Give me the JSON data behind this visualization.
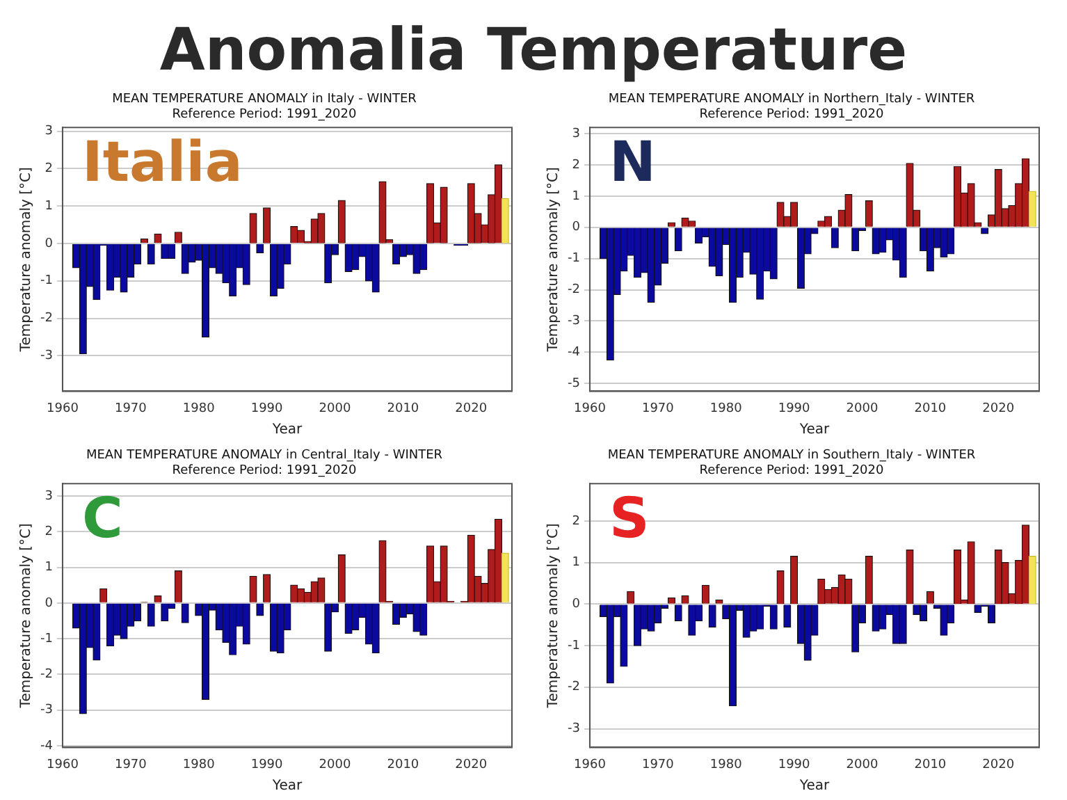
{
  "chart_data": [
    {
      "type": "other",
      "title": "Anomalia Temperature"
    },
    {
      "type": "bar",
      "title": "MEAN TEMPERATURE ANOMALY in Italy - WINTER",
      "subtitle": "Reference Period: 1991_2020",
      "xlabel": "Year",
      "ylabel": "Temperature anomaly [°C]",
      "annotations": [
        "Italia"
      ],
      "x": [
        1962,
        1963,
        1964,
        1965,
        1966,
        1967,
        1968,
        1969,
        1970,
        1971,
        1972,
        1973,
        1974,
        1975,
        1976,
        1977,
        1978,
        1979,
        1980,
        1981,
        1982,
        1983,
        1984,
        1985,
        1986,
        1987,
        1988,
        1989,
        1990,
        1991,
        1992,
        1993,
        1994,
        1995,
        1996,
        1997,
        1998,
        1999,
        2000,
        2001,
        2002,
        2003,
        2004,
        2005,
        2006,
        2007,
        2008,
        2009,
        2010,
        2011,
        2012,
        2013,
        2014,
        2015,
        2016,
        2017,
        2018,
        2019,
        2020,
        2021,
        2022,
        2023,
        2024,
        2025
      ],
      "values": [
        -0.65,
        -2.95,
        -1.15,
        -1.5,
        -0.05,
        -1.25,
        -0.9,
        -1.3,
        -0.9,
        -0.55,
        0.12,
        -0.55,
        0.25,
        -0.4,
        -0.4,
        0.3,
        -0.8,
        -0.5,
        -0.45,
        -2.5,
        -0.65,
        -0.8,
        -1.05,
        -1.4,
        -0.65,
        -1.1,
        0.8,
        -0.25,
        0.95,
        -1.4,
        -1.2,
        -0.55,
        0.45,
        0.35,
        0.05,
        0.65,
        0.8,
        -1.05,
        -0.3,
        1.15,
        -0.75,
        -0.7,
        -0.35,
        -1.0,
        -1.3,
        1.65,
        0.1,
        -0.55,
        -0.35,
        -0.3,
        -0.8,
        -0.7,
        1.6,
        0.55,
        1.5,
        0,
        -0.05,
        -0.05,
        1.6,
        0.8,
        0.5,
        1.3,
        2.1,
        1.2
      ],
      "colors": [
        "#0a0a9e",
        "#0a0a9e",
        "#0a0a9e",
        "#0a0a9e",
        "#0a0a9e",
        "#0a0a9e",
        "#0a0a9e",
        "#0a0a9e",
        "#0a0a9e",
        "#0a0a9e",
        "#b01c1c",
        "#0a0a9e",
        "#b01c1c",
        "#0a0a9e",
        "#0a0a9e",
        "#b01c1c",
        "#0a0a9e",
        "#0a0a9e",
        "#0a0a9e",
        "#0a0a9e",
        "#0a0a9e",
        "#0a0a9e",
        "#0a0a9e",
        "#0a0a9e",
        "#0a0a9e",
        "#0a0a9e",
        "#b01c1c",
        "#0a0a9e",
        "#b01c1c",
        "#0a0a9e",
        "#0a0a9e",
        "#0a0a9e",
        "#b01c1c",
        "#b01c1c",
        "#b01c1c",
        "#b01c1c",
        "#b01c1c",
        "#0a0a9e",
        "#0a0a9e",
        "#b01c1c",
        "#0a0a9e",
        "#0a0a9e",
        "#0a0a9e",
        "#0a0a9e",
        "#0a0a9e",
        "#b01c1c",
        "#b01c1c",
        "#0a0a9e",
        "#0a0a9e",
        "#0a0a9e",
        "#0a0a9e",
        "#0a0a9e",
        "#b01c1c",
        "#b01c1c",
        "#b01c1c",
        "#b01c1c",
        "#0a0a9e",
        "#0a0a9e",
        "#b01c1c",
        "#b01c1c",
        "#b01c1c",
        "#b01c1c",
        "#b01c1c",
        "#f2e35a"
      ],
      "xlim": [
        1960,
        2026
      ],
      "xticks": [
        1960,
        1970,
        1980,
        1990,
        2000,
        2010,
        2020
      ],
      "ylim": [
        -3.95,
        3.1
      ],
      "yticks": [
        -3,
        -2,
        -1,
        0,
        1,
        2,
        3
      ],
      "grid": "y",
      "legend": false
    },
    {
      "type": "bar",
      "title": "MEAN TEMPERATURE ANOMALY in Northern_Italy - WINTER",
      "subtitle": "Reference Period: 1991_2020",
      "xlabel": "Year",
      "ylabel": "Temperature anomaly [°C]",
      "annotations": [
        "N"
      ],
      "x": [
        1962,
        1963,
        1964,
        1965,
        1966,
        1967,
        1968,
        1969,
        1970,
        1971,
        1972,
        1973,
        1974,
        1975,
        1976,
        1977,
        1978,
        1979,
        1980,
        1981,
        1982,
        1983,
        1984,
        1985,
        1986,
        1987,
        1988,
        1989,
        1990,
        1991,
        1992,
        1993,
        1994,
        1995,
        1996,
        1997,
        1998,
        1999,
        2000,
        2001,
        2002,
        2003,
        2004,
        2005,
        2006,
        2007,
        2008,
        2009,
        2010,
        2011,
        2012,
        2013,
        2014,
        2015,
        2016,
        2017,
        2018,
        2019,
        2020,
        2021,
        2022,
        2023,
        2024,
        2025
      ],
      "values": [
        -1.0,
        -4.25,
        -2.15,
        -1.4,
        -0.9,
        -1.6,
        -1.45,
        -2.4,
        -1.85,
        -1.15,
        0.15,
        -0.75,
        0.3,
        0.2,
        -0.5,
        -0.3,
        -1.25,
        -1.55,
        -0.55,
        -2.4,
        -1.6,
        -0.8,
        -1.5,
        -2.3,
        -1.4,
        -1.65,
        0.8,
        0.35,
        0.8,
        -1.95,
        -0.85,
        -0.2,
        0.2,
        0.35,
        -0.65,
        0.55,
        1.05,
        -0.75,
        -0.1,
        0.85,
        -0.85,
        -0.8,
        -0.4,
        -1.05,
        -1.6,
        2.05,
        0.55,
        -0.75,
        -1.4,
        -0.65,
        -0.95,
        -0.85,
        1.95,
        1.1,
        1.4,
        0.15,
        -0.2,
        0.4,
        1.85,
        0.6,
        0.7,
        1.4,
        2.2,
        1.15
      ],
      "colors": [
        "#0a0a9e",
        "#0a0a9e",
        "#0a0a9e",
        "#0a0a9e",
        "#0a0a9e",
        "#0a0a9e",
        "#0a0a9e",
        "#0a0a9e",
        "#0a0a9e",
        "#0a0a9e",
        "#b01c1c",
        "#0a0a9e",
        "#b01c1c",
        "#b01c1c",
        "#0a0a9e",
        "#0a0a9e",
        "#0a0a9e",
        "#0a0a9e",
        "#0a0a9e",
        "#0a0a9e",
        "#0a0a9e",
        "#0a0a9e",
        "#0a0a9e",
        "#0a0a9e",
        "#0a0a9e",
        "#0a0a9e",
        "#b01c1c",
        "#b01c1c",
        "#b01c1c",
        "#0a0a9e",
        "#0a0a9e",
        "#0a0a9e",
        "#b01c1c",
        "#b01c1c",
        "#0a0a9e",
        "#b01c1c",
        "#b01c1c",
        "#0a0a9e",
        "#0a0a9e",
        "#b01c1c",
        "#0a0a9e",
        "#0a0a9e",
        "#0a0a9e",
        "#0a0a9e",
        "#0a0a9e",
        "#b01c1c",
        "#b01c1c",
        "#0a0a9e",
        "#0a0a9e",
        "#0a0a9e",
        "#0a0a9e",
        "#0a0a9e",
        "#b01c1c",
        "#b01c1c",
        "#b01c1c",
        "#b01c1c",
        "#0a0a9e",
        "#b01c1c",
        "#b01c1c",
        "#b01c1c",
        "#b01c1c",
        "#b01c1c",
        "#b01c1c",
        "#f2e35a"
      ],
      "xlim": [
        1960,
        2026
      ],
      "xticks": [
        1960,
        1970,
        1980,
        1990,
        2000,
        2010,
        2020
      ],
      "ylim": [
        -5.25,
        3.2
      ],
      "yticks": [
        -5,
        -4,
        -3,
        -2,
        -1,
        0,
        1,
        2,
        3
      ],
      "grid": "y",
      "legend": false
    },
    {
      "type": "bar",
      "title": "MEAN TEMPERATURE ANOMALY in Central_Italy - WINTER",
      "subtitle": "Reference Period: 1991_2020",
      "xlabel": "Year",
      "ylabel": "Temperature anomaly [°C]",
      "annotations": [
        "C"
      ],
      "x": [
        1962,
        1963,
        1964,
        1965,
        1966,
        1967,
        1968,
        1969,
        1970,
        1971,
        1972,
        1973,
        1974,
        1975,
        1976,
        1977,
        1978,
        1979,
        1980,
        1981,
        1982,
        1983,
        1984,
        1985,
        1986,
        1987,
        1988,
        1989,
        1990,
        1991,
        1992,
        1993,
        1994,
        1995,
        1996,
        1997,
        1998,
        1999,
        2000,
        2001,
        2002,
        2003,
        2004,
        2005,
        2006,
        2007,
        2008,
        2009,
        2010,
        2011,
        2012,
        2013,
        2014,
        2015,
        2016,
        2017,
        2018,
        2019,
        2020,
        2021,
        2022,
        2023,
        2024,
        2025
      ],
      "values": [
        -0.7,
        -3.1,
        -1.25,
        -1.6,
        0.4,
        -1.2,
        -0.9,
        -1.0,
        -0.65,
        -0.5,
        0.02,
        -0.65,
        0.2,
        -0.5,
        -0.15,
        0.9,
        -0.55,
        0,
        -0.35,
        -2.7,
        -0.2,
        -0.75,
        -1.1,
        -1.45,
        -0.65,
        -1.15,
        0.75,
        -0.35,
        0.8,
        -1.35,
        -1.4,
        -0.75,
        0.5,
        0.4,
        0.3,
        0.6,
        0.7,
        -1.35,
        -0.25,
        1.35,
        -0.85,
        -0.75,
        -0.4,
        -1.15,
        -1.4,
        1.75,
        0.05,
        -0.6,
        -0.4,
        -0.3,
        -0.8,
        -0.9,
        1.6,
        0.6,
        1.6,
        0.05,
        0,
        0.05,
        1.9,
        0.75,
        0.55,
        1.5,
        2.35,
        1.4
      ],
      "colors": [
        "#0a0a9e",
        "#0a0a9e",
        "#0a0a9e",
        "#0a0a9e",
        "#b01c1c",
        "#0a0a9e",
        "#0a0a9e",
        "#0a0a9e",
        "#0a0a9e",
        "#0a0a9e",
        "#b01c1c",
        "#0a0a9e",
        "#b01c1c",
        "#0a0a9e",
        "#0a0a9e",
        "#b01c1c",
        "#0a0a9e",
        "#0a0a9e",
        "#0a0a9e",
        "#0a0a9e",
        "#0a0a9e",
        "#0a0a9e",
        "#0a0a9e",
        "#0a0a9e",
        "#0a0a9e",
        "#0a0a9e",
        "#b01c1c",
        "#0a0a9e",
        "#b01c1c",
        "#0a0a9e",
        "#0a0a9e",
        "#0a0a9e",
        "#b01c1c",
        "#b01c1c",
        "#b01c1c",
        "#b01c1c",
        "#b01c1c",
        "#0a0a9e",
        "#0a0a9e",
        "#b01c1c",
        "#0a0a9e",
        "#0a0a9e",
        "#0a0a9e",
        "#0a0a9e",
        "#0a0a9e",
        "#b01c1c",
        "#b01c1c",
        "#0a0a9e",
        "#0a0a9e",
        "#0a0a9e",
        "#0a0a9e",
        "#0a0a9e",
        "#b01c1c",
        "#b01c1c",
        "#b01c1c",
        "#b01c1c",
        "#b01c1c",
        "#b01c1c",
        "#b01c1c",
        "#b01c1c",
        "#b01c1c",
        "#b01c1c",
        "#b01c1c",
        "#f2e35a"
      ],
      "xlim": [
        1960,
        2026
      ],
      "xticks": [
        1960,
        1970,
        1980,
        1990,
        2000,
        2010,
        2020
      ],
      "ylim": [
        -4.05,
        3.35
      ],
      "yticks": [
        -4,
        -3,
        -2,
        -1,
        0,
        1,
        2,
        3
      ],
      "grid": "y",
      "legend": false
    },
    {
      "type": "bar",
      "title": "MEAN TEMPERATURE ANOMALY in Southern_Italy - WINTER",
      "subtitle": "Reference Period: 1991_2020",
      "xlabel": "Year",
      "ylabel": "Temperature anomaly [°C]",
      "annotations": [
        "S"
      ],
      "x": [
        1962,
        1963,
        1964,
        1965,
        1966,
        1967,
        1968,
        1969,
        1970,
        1971,
        1972,
        1973,
        1974,
        1975,
        1976,
        1977,
        1978,
        1979,
        1980,
        1981,
        1982,
        1983,
        1984,
        1985,
        1986,
        1987,
        1988,
        1989,
        1990,
        1991,
        1992,
        1993,
        1994,
        1995,
        1996,
        1997,
        1998,
        1999,
        2000,
        2001,
        2002,
        2003,
        2004,
        2005,
        2006,
        2007,
        2008,
        2009,
        2010,
        2011,
        2012,
        2013,
        2014,
        2015,
        2016,
        2017,
        2018,
        2019,
        2020,
        2021,
        2022,
        2023,
        2024,
        2025
      ],
      "values": [
        -0.3,
        -1.9,
        -0.3,
        -1.5,
        0.3,
        -1.0,
        -0.6,
        -0.65,
        -0.45,
        -0.1,
        0.15,
        -0.4,
        0.2,
        -0.75,
        -0.4,
        0.45,
        -0.55,
        0.1,
        -0.35,
        -2.45,
        -0.15,
        -0.8,
        -0.65,
        -0.6,
        -0.05,
        -0.6,
        0.8,
        -0.55,
        1.15,
        -0.95,
        -1.35,
        -0.75,
        0.6,
        0.35,
        0.4,
        0.7,
        0.6,
        -1.15,
        -0.45,
        1.15,
        -0.65,
        -0.6,
        -0.25,
        -0.95,
        -0.95,
        1.3,
        -0.25,
        -0.4,
        0.3,
        -0.1,
        -0.75,
        -0.45,
        1.3,
        0.1,
        1.5,
        -0.2,
        -0.05,
        -0.45,
        1.3,
        1.0,
        0.25,
        1.05,
        1.9,
        1.15
      ],
      "colors": [
        "#0a0a9e",
        "#0a0a9e",
        "#0a0a9e",
        "#0a0a9e",
        "#b01c1c",
        "#0a0a9e",
        "#0a0a9e",
        "#0a0a9e",
        "#0a0a9e",
        "#0a0a9e",
        "#b01c1c",
        "#0a0a9e",
        "#b01c1c",
        "#0a0a9e",
        "#0a0a9e",
        "#b01c1c",
        "#0a0a9e",
        "#b01c1c",
        "#0a0a9e",
        "#0a0a9e",
        "#0a0a9e",
        "#0a0a9e",
        "#0a0a9e",
        "#0a0a9e",
        "#0a0a9e",
        "#0a0a9e",
        "#b01c1c",
        "#0a0a9e",
        "#b01c1c",
        "#0a0a9e",
        "#0a0a9e",
        "#0a0a9e",
        "#b01c1c",
        "#b01c1c",
        "#b01c1c",
        "#b01c1c",
        "#b01c1c",
        "#0a0a9e",
        "#0a0a9e",
        "#b01c1c",
        "#0a0a9e",
        "#0a0a9e",
        "#0a0a9e",
        "#0a0a9e",
        "#0a0a9e",
        "#b01c1c",
        "#0a0a9e",
        "#0a0a9e",
        "#b01c1c",
        "#0a0a9e",
        "#0a0a9e",
        "#0a0a9e",
        "#b01c1c",
        "#b01c1c",
        "#b01c1c",
        "#0a0a9e",
        "#0a0a9e",
        "#0a0a9e",
        "#b01c1c",
        "#b01c1c",
        "#b01c1c",
        "#b01c1c",
        "#b01c1c",
        "#f2e35a"
      ],
      "xlim": [
        1960,
        2026
      ],
      "xticks": [
        1960,
        1970,
        1980,
        1990,
        2000,
        2010,
        2020
      ],
      "ylim": [
        -3.45,
        2.9
      ],
      "yticks": [
        -3,
        -2,
        -1,
        0,
        1,
        2
      ],
      "grid": "y",
      "legend": false
    }
  ]
}
